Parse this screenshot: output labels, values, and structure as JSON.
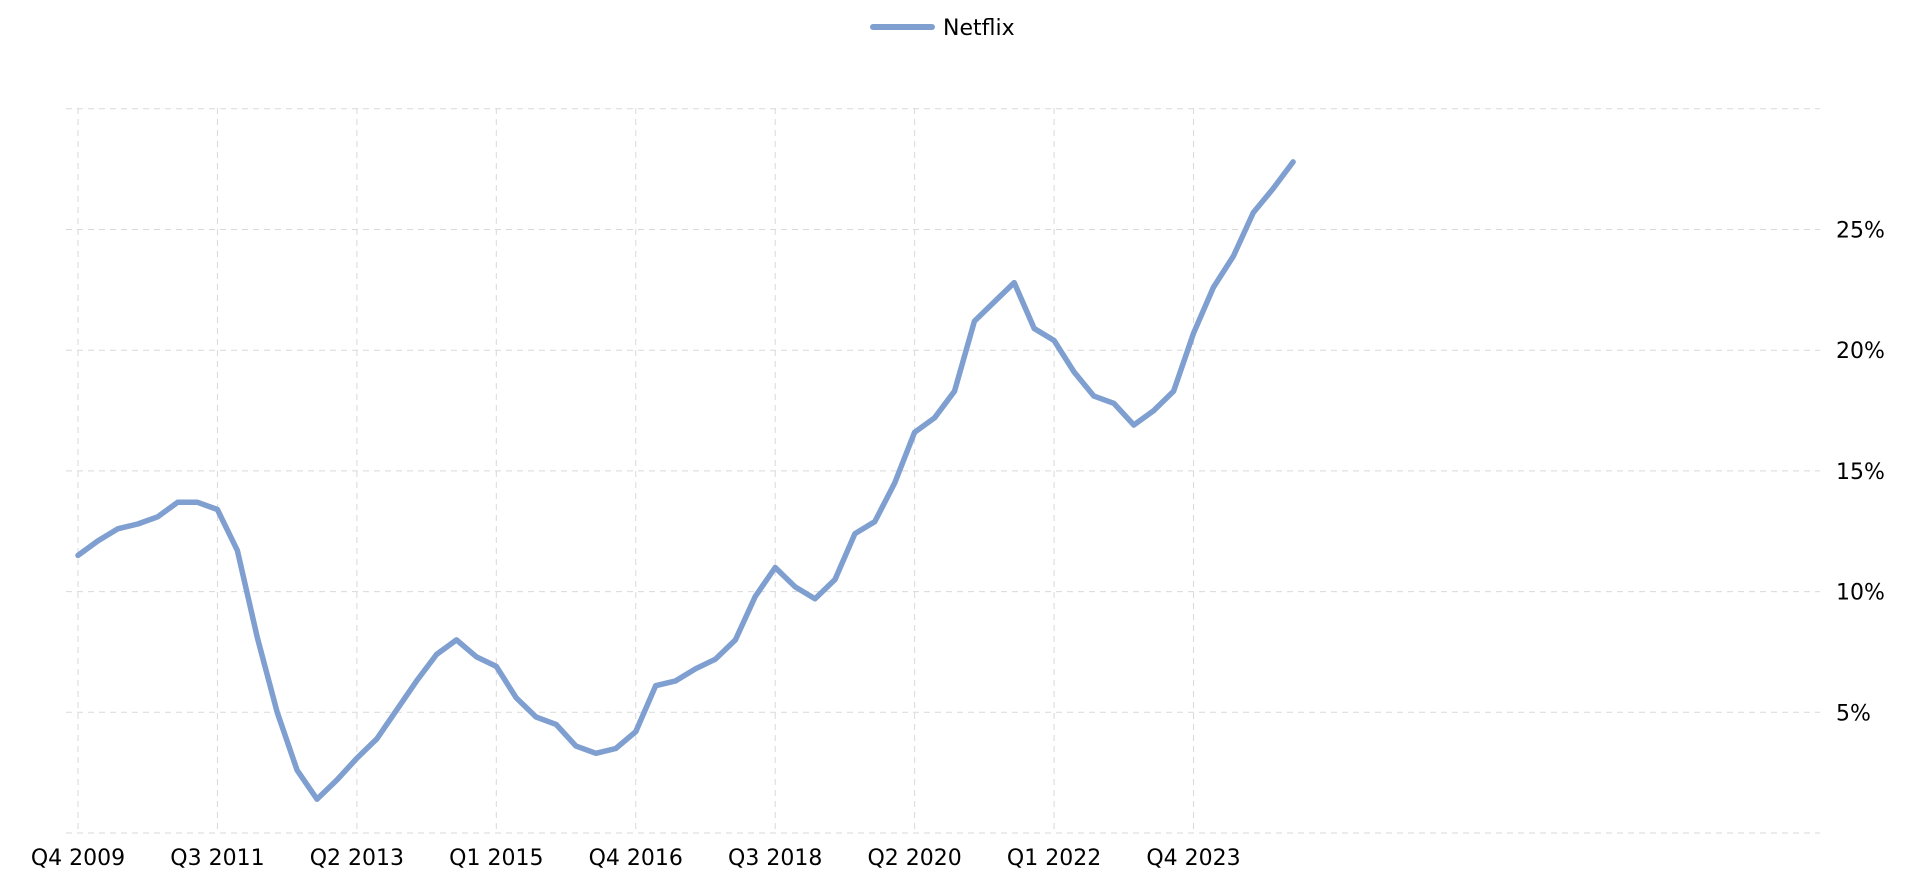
{
  "chart_data": {
    "type": "line",
    "title": "",
    "xlabel": "",
    "ylabel": "",
    "legend": {
      "position": "top-center"
    },
    "grid": true,
    "ylim": [
      0,
      30
    ],
    "y_ticks": [
      5,
      10,
      15,
      20,
      25
    ],
    "y_tick_labels": [
      "5%",
      "10%",
      "15%",
      "20%",
      "25%"
    ],
    "x_ticks": [
      "Q4 2009",
      "Q3 2011",
      "Q2 2013",
      "Q1 2015",
      "Q4 2016",
      "Q3 2018",
      "Q2 2020",
      "Q1 2022",
      "Q4 2023"
    ],
    "categories": [
      "Q4 2009",
      "Q1 2010",
      "Q2 2010",
      "Q3 2010",
      "Q4 2010",
      "Q1 2011",
      "Q2 2011",
      "Q3 2011",
      "Q4 2011",
      "Q1 2012",
      "Q2 2012",
      "Q3 2012",
      "Q4 2012",
      "Q1 2013",
      "Q2 2013",
      "Q3 2013",
      "Q4 2013",
      "Q1 2014",
      "Q2 2014",
      "Q3 2014",
      "Q4 2014",
      "Q1 2015",
      "Q2 2015",
      "Q3 2015",
      "Q4 2015",
      "Q1 2016",
      "Q2 2016",
      "Q3 2016",
      "Q4 2016",
      "Q1 2017",
      "Q2 2017",
      "Q3 2017",
      "Q4 2017",
      "Q1 2018",
      "Q2 2018",
      "Q3 2018",
      "Q4 2018",
      "Q1 2019",
      "Q2 2019",
      "Q3 2019",
      "Q4 2019",
      "Q1 2020",
      "Q2 2020",
      "Q3 2020",
      "Q4 2020",
      "Q1 2021",
      "Q2 2021",
      "Q3 2021",
      "Q4 2021",
      "Q1 2022",
      "Q2 2022",
      "Q3 2022",
      "Q4 2022",
      "Q1 2023",
      "Q2 2023",
      "Q3 2023",
      "Q4 2023",
      "Q1 2024",
      "Q2 2024",
      "Q3 2024",
      "Q4 2024",
      "Q1 2025"
    ],
    "series": [
      {
        "name": "Netflix",
        "color": "#7f9fd0",
        "values": [
          11.5,
          12.1,
          12.6,
          12.8,
          13.1,
          13.7,
          13.7,
          13.4,
          11.7,
          8.1,
          5.0,
          2.6,
          1.4,
          2.2,
          3.1,
          3.9,
          5.1,
          6.3,
          7.4,
          8.0,
          7.3,
          6.9,
          5.6,
          4.8,
          4.5,
          3.6,
          3.3,
          3.5,
          4.2,
          6.1,
          6.3,
          6.8,
          7.2,
          8.0,
          9.8,
          11.0,
          10.2,
          9.7,
          10.5,
          12.4,
          12.9,
          14.5,
          16.6,
          17.2,
          18.3,
          21.2,
          22.0,
          22.8,
          20.9,
          20.4,
          19.1,
          18.1,
          17.8,
          16.9,
          17.5,
          18.3,
          20.7,
          22.6,
          23.9,
          25.7,
          26.7,
          27.8
        ]
      }
    ]
  }
}
